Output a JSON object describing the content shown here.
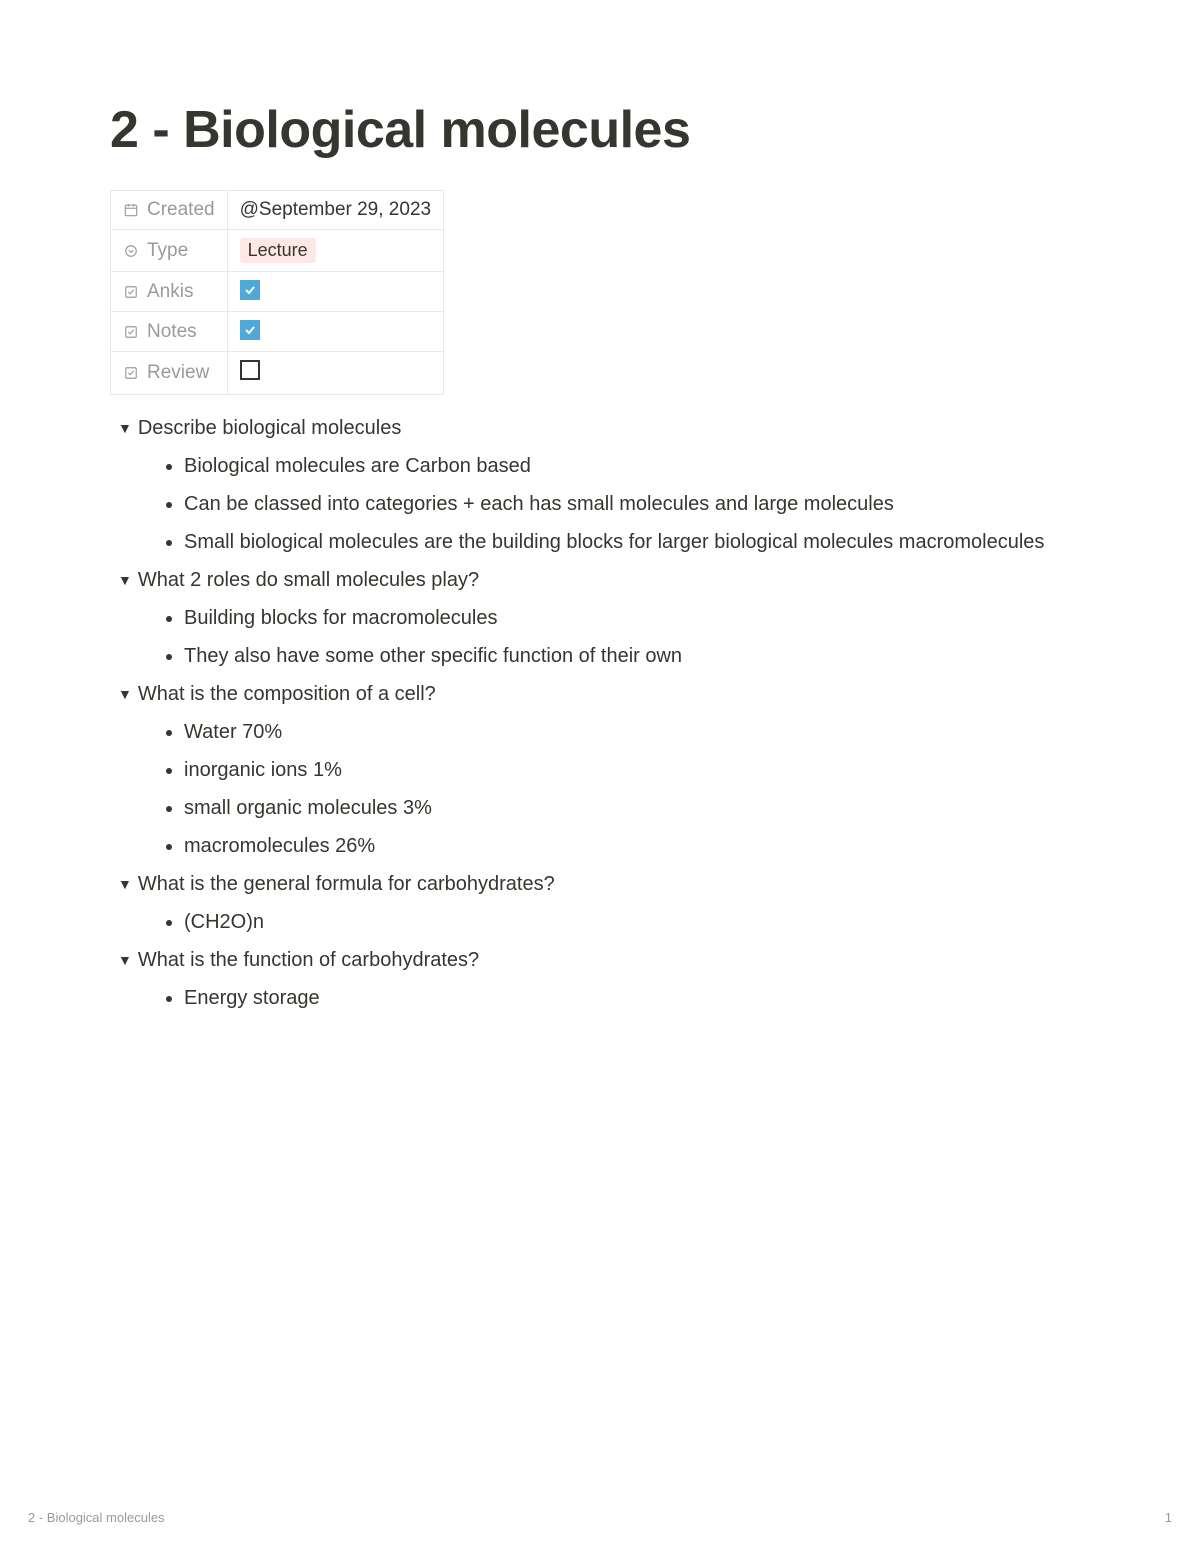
{
  "title": "2 - Biological molecules",
  "properties": {
    "created": {
      "label": "Created",
      "value": "@September 29, 2023"
    },
    "type": {
      "label": "Type",
      "value": "Lecture"
    },
    "ankis": {
      "label": "Ankis",
      "checked": true
    },
    "notes": {
      "label": "Notes",
      "checked": true
    },
    "review": {
      "label": "Review",
      "checked": false
    }
  },
  "toggles": [
    {
      "title": "Describe biological molecules",
      "items": [
        "Biological molecules are Carbon based",
        "Can be classed into categories + each has small molecules and large molecules",
        "Small biological molecules are the building blocks for larger biological molecules macromolecules"
      ]
    },
    {
      "title": "What 2 roles do small molecules play?",
      "items": [
        "Building blocks for macromolecules",
        "They also have some other specific function of their own"
      ]
    },
    {
      "title": "What is the composition of a cell?",
      "items": [
        "Water 70%",
        "inorganic ions 1%",
        "small organic molecules 3%",
        "macromolecules 26%"
      ]
    },
    {
      "title": "What is the general formula for carbohydrates?",
      "items": [
        "(CH2O)n"
      ]
    },
    {
      "title": "What is the function of carbohydrates?",
      "items": [
        "Energy storage"
      ]
    }
  ],
  "footer": {
    "title": "2 - Biological molecules",
    "page": "1"
  }
}
